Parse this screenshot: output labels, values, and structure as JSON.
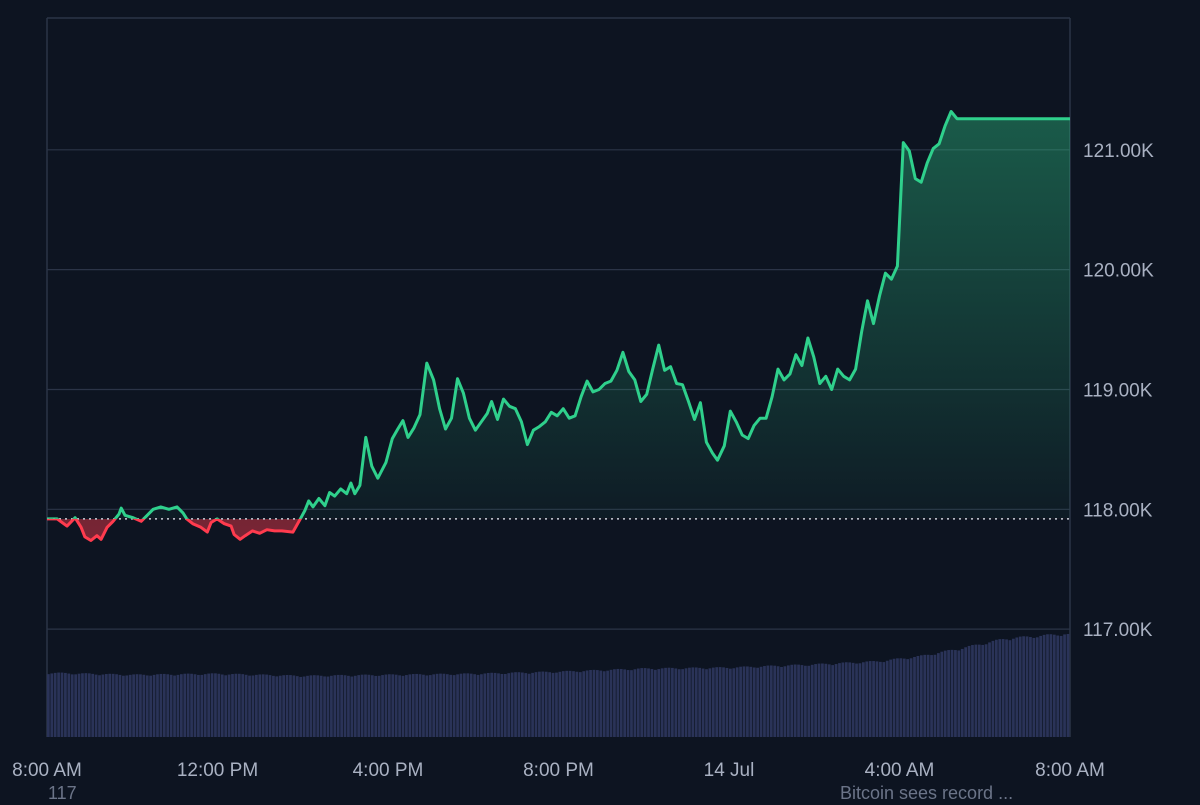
{
  "chart_data": {
    "type": "area",
    "y_axis_position": "right",
    "grid": true,
    "ylim": [
      116.1,
      122.1
    ],
    "baseline": 117.92,
    "colors": {
      "up_line": "#2fd08c",
      "down_line": "#ff3b4e",
      "up_fill": "#2fd08c",
      "down_fill": "#ff3b4e",
      "volume": "#2a3358",
      "grid": "#2b3447",
      "baseline": "#c9ced8"
    },
    "y_ticks": [
      {
        "value": 117,
        "label": "117.00K"
      },
      {
        "value": 118,
        "label": "118.00K"
      },
      {
        "value": 119,
        "label": "119.00K"
      },
      {
        "value": 120,
        "label": "120.00K"
      },
      {
        "value": 121,
        "label": "121.00K"
      }
    ],
    "x_ticks": [
      {
        "hours": 0,
        "label": "8:00 AM"
      },
      {
        "hours": 4,
        "label": "12:00 PM"
      },
      {
        "hours": 8,
        "label": "4:00 PM"
      },
      {
        "hours": 12,
        "label": "8:00 PM"
      },
      {
        "hours": 16,
        "label": "14 Jul"
      },
      {
        "hours": 20,
        "label": "4:00 AM"
      },
      {
        "hours": 24,
        "label": "8:00 AM"
      }
    ],
    "x_range_hours": [
      0,
      24
    ],
    "bottom_labels": {
      "left": "117",
      "right": "Bitcoin sees record ..."
    },
    "price_series": [
      [
        0.0,
        117.92
      ],
      [
        0.24,
        117.92
      ],
      [
        0.47,
        117.86
      ],
      [
        0.66,
        117.93
      ],
      [
        0.8,
        117.85
      ],
      [
        0.89,
        117.77
      ],
      [
        1.03,
        117.74
      ],
      [
        1.17,
        117.78
      ],
      [
        1.27,
        117.75
      ],
      [
        1.41,
        117.85
      ],
      [
        1.55,
        117.9
      ],
      [
        1.69,
        117.96
      ],
      [
        1.74,
        118.01
      ],
      [
        1.83,
        117.95
      ],
      [
        2.02,
        117.93
      ],
      [
        2.21,
        117.9
      ],
      [
        2.35,
        117.95
      ],
      [
        2.49,
        118.0
      ],
      [
        2.67,
        118.02
      ],
      [
        2.86,
        118.0
      ],
      [
        3.05,
        118.02
      ],
      [
        3.19,
        117.97
      ],
      [
        3.28,
        117.92
      ],
      [
        3.42,
        117.88
      ],
      [
        3.61,
        117.85
      ],
      [
        3.76,
        117.81
      ],
      [
        3.85,
        117.89
      ],
      [
        3.99,
        117.92
      ],
      [
        4.16,
        117.88
      ],
      [
        4.32,
        117.86
      ],
      [
        4.39,
        117.79
      ],
      [
        4.53,
        117.75
      ],
      [
        4.65,
        117.78
      ],
      [
        4.82,
        117.82
      ],
      [
        4.99,
        117.8
      ],
      [
        5.16,
        117.83
      ],
      [
        5.34,
        117.82
      ],
      [
        5.51,
        117.82
      ],
      [
        5.77,
        117.81
      ],
      [
        5.96,
        117.93
      ],
      [
        6.05,
        117.99
      ],
      [
        6.14,
        118.07
      ],
      [
        6.24,
        118.02
      ],
      [
        6.38,
        118.09
      ],
      [
        6.52,
        118.03
      ],
      [
        6.63,
        118.14
      ],
      [
        6.75,
        118.11
      ],
      [
        6.89,
        118.17
      ],
      [
        7.03,
        118.13
      ],
      [
        7.13,
        118.22
      ],
      [
        7.22,
        118.13
      ],
      [
        7.34,
        118.2
      ],
      [
        7.48,
        118.6
      ],
      [
        7.62,
        118.36
      ],
      [
        7.76,
        118.26
      ],
      [
        7.95,
        118.39
      ],
      [
        8.1,
        118.59
      ],
      [
        8.23,
        118.67
      ],
      [
        8.35,
        118.74
      ],
      [
        8.47,
        118.6
      ],
      [
        8.61,
        118.68
      ],
      [
        8.75,
        118.79
      ],
      [
        8.91,
        119.22
      ],
      [
        9.07,
        119.08
      ],
      [
        9.21,
        118.84
      ],
      [
        9.35,
        118.67
      ],
      [
        9.49,
        118.76
      ],
      [
        9.63,
        119.09
      ],
      [
        9.77,
        118.97
      ],
      [
        9.91,
        118.76
      ],
      [
        10.05,
        118.66
      ],
      [
        10.19,
        118.73
      ],
      [
        10.33,
        118.8
      ],
      [
        10.43,
        118.9
      ],
      [
        10.57,
        118.75
      ],
      [
        10.71,
        118.92
      ],
      [
        10.85,
        118.86
      ],
      [
        10.99,
        118.84
      ],
      [
        11.13,
        118.73
      ],
      [
        11.27,
        118.54
      ],
      [
        11.41,
        118.66
      ],
      [
        11.55,
        118.69
      ],
      [
        11.69,
        118.73
      ],
      [
        11.83,
        118.81
      ],
      [
        11.97,
        118.78
      ],
      [
        12.11,
        118.84
      ],
      [
        12.25,
        118.76
      ],
      [
        12.39,
        118.78
      ],
      [
        12.53,
        118.94
      ],
      [
        12.67,
        119.07
      ],
      [
        12.81,
        118.98
      ],
      [
        12.95,
        119.0
      ],
      [
        13.09,
        119.05
      ],
      [
        13.23,
        119.07
      ],
      [
        13.37,
        119.16
      ],
      [
        13.51,
        119.31
      ],
      [
        13.65,
        119.15
      ],
      [
        13.79,
        119.08
      ],
      [
        13.93,
        118.9
      ],
      [
        14.07,
        118.96
      ],
      [
        14.21,
        119.17
      ],
      [
        14.35,
        119.37
      ],
      [
        14.49,
        119.16
      ],
      [
        14.63,
        119.19
      ],
      [
        14.77,
        119.05
      ],
      [
        14.91,
        119.04
      ],
      [
        15.05,
        118.9
      ],
      [
        15.19,
        118.75
      ],
      [
        15.33,
        118.89
      ],
      [
        15.47,
        118.56
      ],
      [
        15.61,
        118.47
      ],
      [
        15.73,
        118.41
      ],
      [
        15.89,
        118.53
      ],
      [
        16.03,
        118.82
      ],
      [
        16.17,
        118.73
      ],
      [
        16.31,
        118.62
      ],
      [
        16.45,
        118.59
      ],
      [
        16.59,
        118.7
      ],
      [
        16.73,
        118.76
      ],
      [
        16.87,
        118.76
      ],
      [
        17.01,
        118.94
      ],
      [
        17.15,
        119.17
      ],
      [
        17.29,
        119.08
      ],
      [
        17.43,
        119.13
      ],
      [
        17.57,
        119.29
      ],
      [
        17.71,
        119.2
      ],
      [
        17.85,
        119.43
      ],
      [
        17.99,
        119.27
      ],
      [
        18.13,
        119.05
      ],
      [
        18.27,
        119.11
      ],
      [
        18.41,
        119.0
      ],
      [
        18.55,
        119.17
      ],
      [
        18.69,
        119.11
      ],
      [
        18.83,
        119.08
      ],
      [
        18.97,
        119.17
      ],
      [
        19.11,
        119.48
      ],
      [
        19.25,
        119.74
      ],
      [
        19.39,
        119.55
      ],
      [
        19.53,
        119.78
      ],
      [
        19.67,
        119.97
      ],
      [
        19.81,
        119.92
      ],
      [
        19.95,
        120.03
      ],
      [
        20.09,
        121.06
      ],
      [
        20.23,
        120.99
      ],
      [
        20.37,
        120.76
      ],
      [
        20.51,
        120.73
      ],
      [
        20.65,
        120.89
      ],
      [
        20.79,
        121.01
      ],
      [
        20.93,
        121.05
      ],
      [
        21.07,
        121.2
      ],
      [
        21.21,
        121.32
      ],
      [
        21.35,
        121.26
      ],
      [
        24.0,
        121.26
      ]
    ],
    "volume_series": [
      [
        0,
        0.62
      ],
      [
        2,
        0.6
      ],
      [
        4,
        0.61
      ],
      [
        6,
        0.59
      ],
      [
        8,
        0.6
      ],
      [
        10,
        0.61
      ],
      [
        12,
        0.63
      ],
      [
        14,
        0.66
      ],
      [
        16,
        0.67
      ],
      [
        18,
        0.7
      ],
      [
        19.5,
        0.73
      ],
      [
        20.5,
        0.78
      ],
      [
        21.5,
        0.86
      ],
      [
        22.5,
        0.95
      ],
      [
        24,
        1.0
      ]
    ]
  }
}
